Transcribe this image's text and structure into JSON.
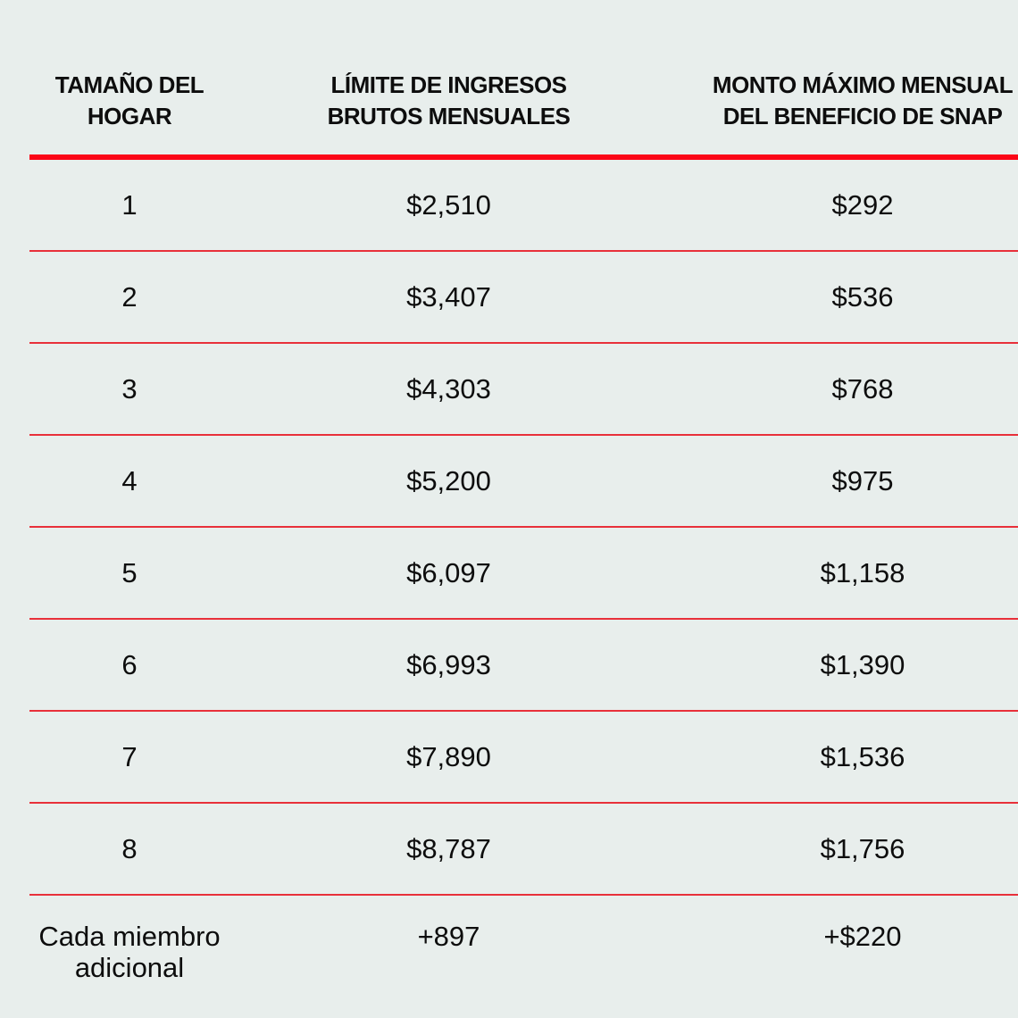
{
  "table": {
    "headers": [
      "TAMAÑO DEL\nHOGAR",
      "LÍMITE DE INGRESOS\nBRUTOS MENSUALES",
      "MONTO MÁXIMO MENSUAL\nDEL BENEFICIO DE SNAP"
    ],
    "rows": [
      {
        "size": "1",
        "income": "$2,510",
        "benefit": "$292"
      },
      {
        "size": "2",
        "income": "$3,407",
        "benefit": "$536"
      },
      {
        "size": "3",
        "income": "$4,303",
        "benefit": "$768"
      },
      {
        "size": "4",
        "income": "$5,200",
        "benefit": "$975"
      },
      {
        "size": "5",
        "income": "$6,097",
        "benefit": "$1,158"
      },
      {
        "size": "6",
        "income": "$6,993",
        "benefit": "$1,390"
      },
      {
        "size": "7",
        "income": "$7,890",
        "benefit": "$1,536"
      },
      {
        "size": "8",
        "income": "$8,787",
        "benefit": "$1,756"
      },
      {
        "size": "Cada miembro\nadicional",
        "income": "+897",
        "benefit": "+$220"
      }
    ]
  },
  "chart_data": {
    "type": "table",
    "columns": [
      "TAMAÑO DEL HOGAR",
      "LÍMITE DE INGRESOS BRUTOS MENSUALES",
      "MONTO MÁXIMO MENSUAL DEL BENEFICIO DE SNAP"
    ],
    "rows": [
      [
        "1",
        "$2,510",
        "$292"
      ],
      [
        "2",
        "$3,407",
        "$536"
      ],
      [
        "3",
        "$4,303",
        "$768"
      ],
      [
        "4",
        "$5,200",
        "$975"
      ],
      [
        "5",
        "$6,097",
        "$1,158"
      ],
      [
        "6",
        "$6,993",
        "$1,390"
      ],
      [
        "7",
        "$7,890",
        "$1,536"
      ],
      [
        "8",
        "$8,787",
        "$1,756"
      ],
      [
        "Cada miembro adicional",
        "+897",
        "+$220"
      ]
    ],
    "layout_hints": {
      "header_divider": "thick red rule",
      "row_divider": "thin red rule",
      "alignment": "all columns centered"
    }
  },
  "colors": {
    "background": "#e8eeec",
    "header_rule_red": "#fb0617",
    "row_divider_red": "#e8303a",
    "text": "#0d0d0d"
  }
}
